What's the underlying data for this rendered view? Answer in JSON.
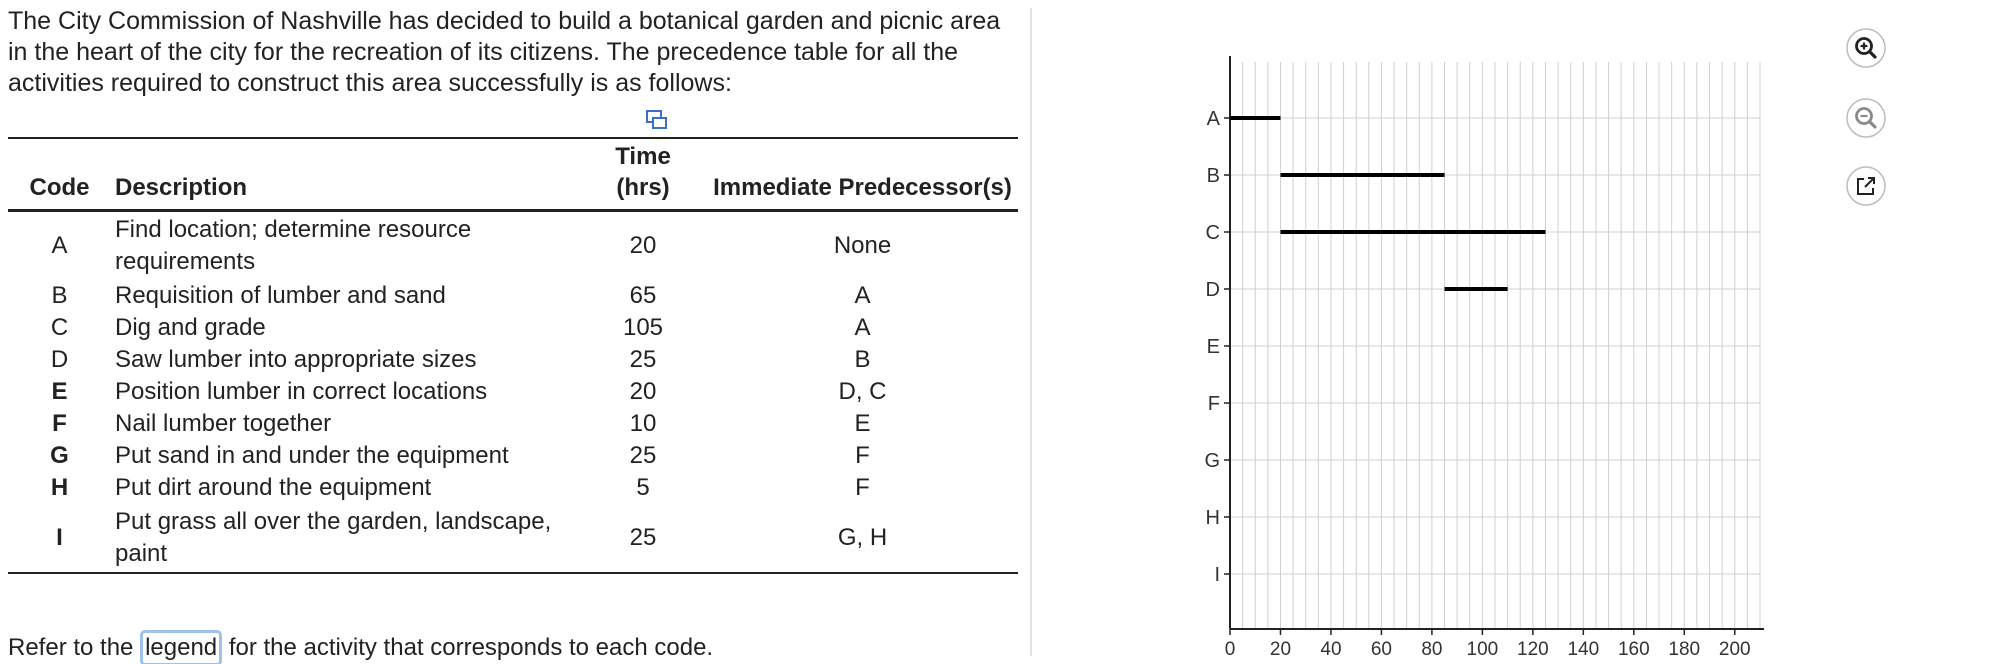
{
  "intro_text": "The City Commission of Nashville has decided to build a botanical garden and picnic area in the heart of the city for the recreation of its citizens. The precedence table for all the activities required to construct this area successfully is as follows:",
  "table": {
    "headers": {
      "code": "Code",
      "description": "Description",
      "time_line1": "Time",
      "time_line2": "(hrs)",
      "predecessors": "Immediate Predecessor(s)"
    },
    "rows": [
      {
        "code": "A",
        "description": "Find location; determine resource requirements",
        "time": "20",
        "predecessors": "None",
        "bold": false
      },
      {
        "code": "B",
        "description": "Requisition of lumber and sand",
        "time": "65",
        "predecessors": "A",
        "bold": false
      },
      {
        "code": "C",
        "description": "Dig and grade",
        "time": "105",
        "predecessors": "A",
        "bold": false
      },
      {
        "code": "D",
        "description": "Saw lumber into appropriate sizes",
        "time": "25",
        "predecessors": "B",
        "bold": false
      },
      {
        "code": "E",
        "description": "Position lumber in correct locations",
        "time": "20",
        "predecessors": "D, C",
        "bold": true
      },
      {
        "code": "F",
        "description": "Nail lumber together",
        "time": "10",
        "predecessors": "E",
        "bold": true
      },
      {
        "code": "G",
        "description": "Put sand in and under the equipment",
        "time": "25",
        "predecessors": "F",
        "bold": true
      },
      {
        "code": "H",
        "description": "Put dirt around the equipment",
        "time": "5",
        "predecessors": "F",
        "bold": true
      },
      {
        "code": "I",
        "description": "Put grass all over the garden, landscape, paint",
        "time": "25",
        "predecessors": "G, H",
        "bold": true
      }
    ]
  },
  "footer": {
    "before": "Refer to the ",
    "link": "legend",
    "after": " for the activity that corresponds to each code."
  },
  "icons": {
    "copy": "copy-table-icon",
    "zoom_in": "zoom-in-icon",
    "zoom_out": "zoom-out-icon",
    "expand": "expand-icon"
  },
  "colors": {
    "accent_icon": "#3a3a3a",
    "icon_border": "#bcbcbc",
    "grid": "#d0d0d0",
    "bar": "#000000",
    "link_highlight": "#9ec2ea"
  },
  "chart_data": {
    "type": "gantt",
    "categories": [
      "A",
      "B",
      "C",
      "D",
      "E",
      "F",
      "G",
      "H",
      "I"
    ],
    "x_ticks": [
      "0",
      "20",
      "40",
      "60",
      "80",
      "100",
      "120",
      "140",
      "160",
      "180",
      "200"
    ],
    "xlim": [
      0,
      210
    ],
    "x_minor_step": 5,
    "grid": true,
    "bars": [
      {
        "task": "A",
        "start": 0,
        "end": 20
      },
      {
        "task": "B",
        "start": 20,
        "end": 85
      },
      {
        "task": "C",
        "start": 20,
        "end": 125
      },
      {
        "task": "D",
        "start": 85,
        "end": 110
      }
    ]
  }
}
